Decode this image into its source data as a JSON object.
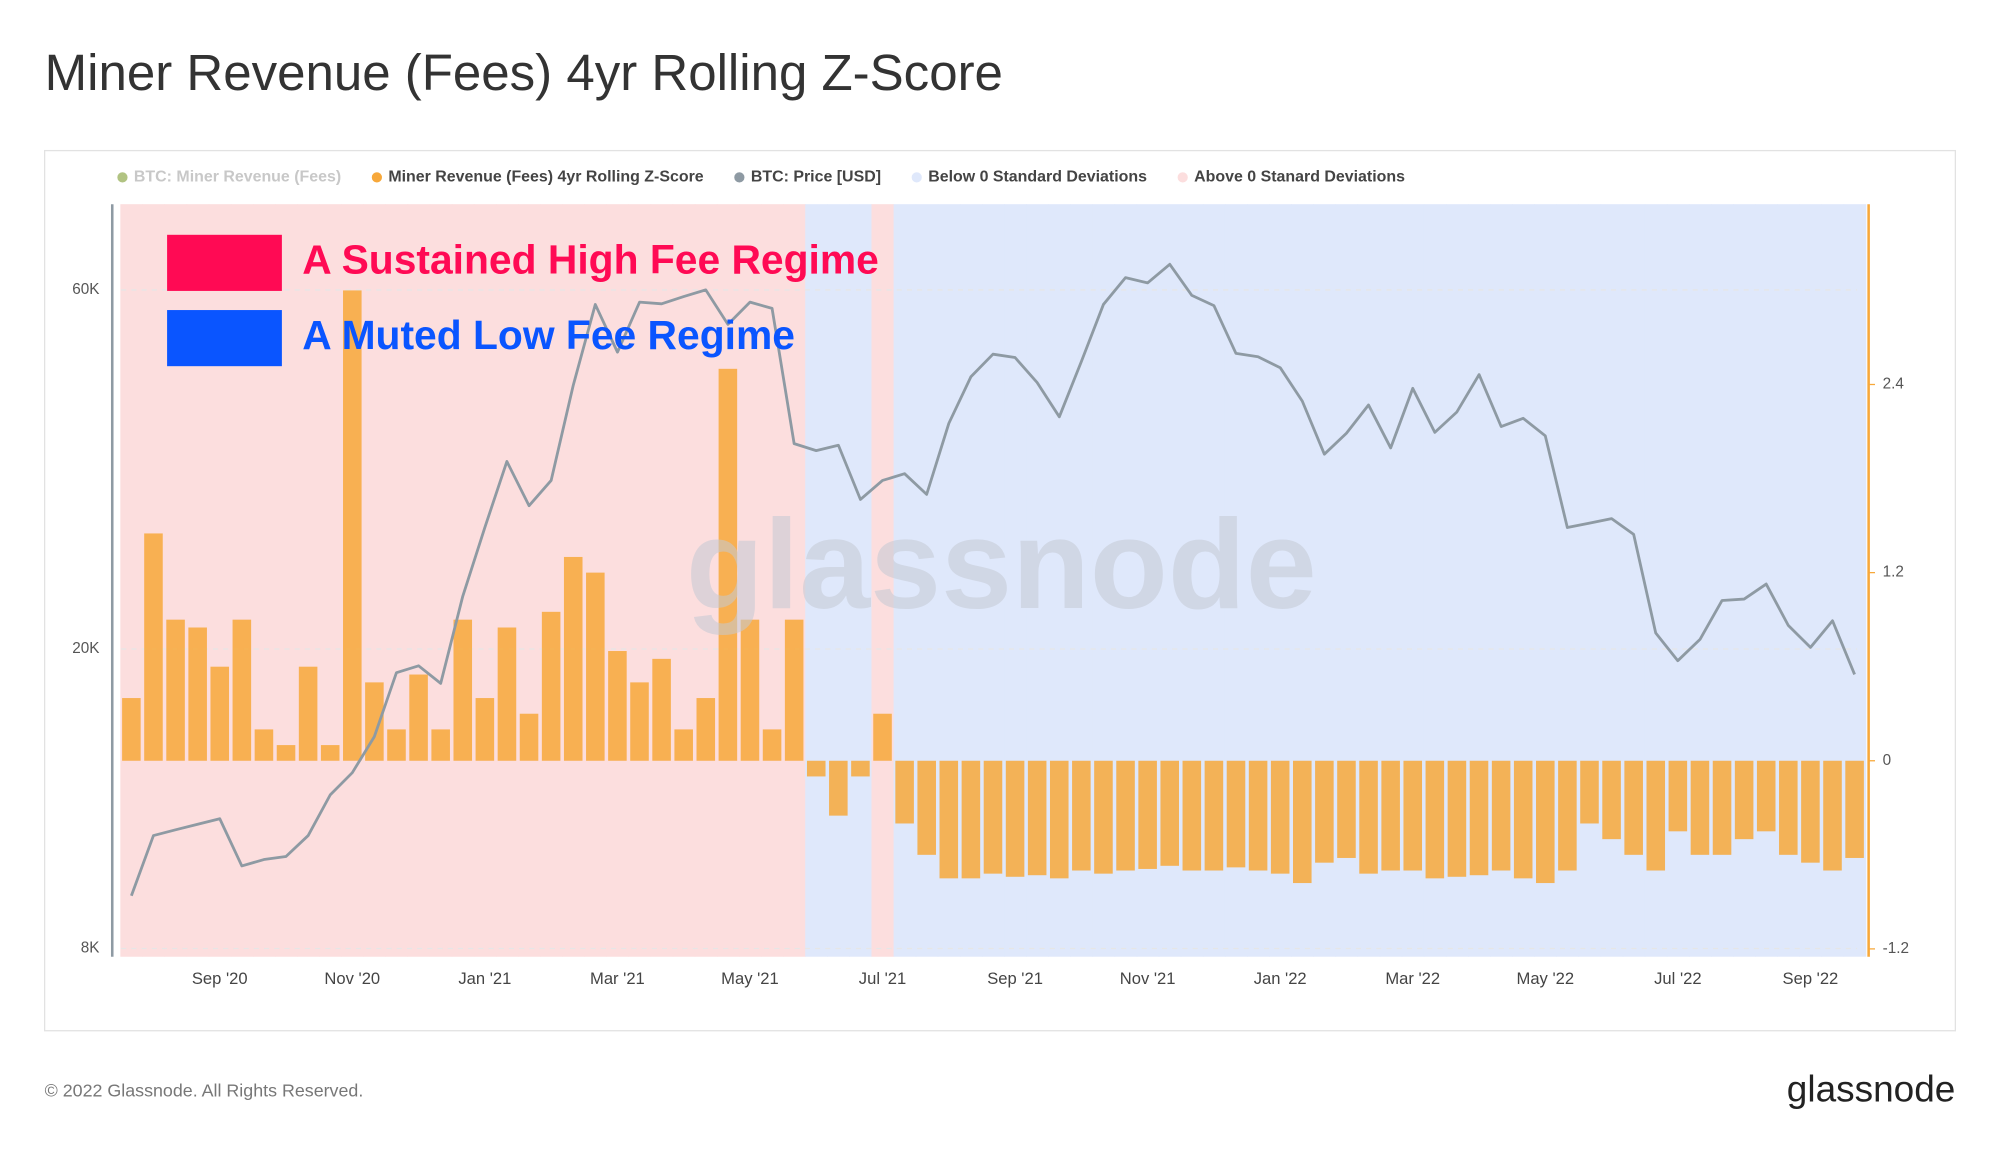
{
  "chart_data": {
    "type": "combo",
    "title": "Miner Revenue (Fees) 4yr Rolling Z-Score",
    "categories": [
      null,
      null,
      null,
      null,
      "Sep '20",
      null,
      null,
      null,
      null,
      null,
      "Nov '20",
      null,
      null,
      null,
      null,
      null,
      "Jan '21",
      null,
      null,
      null,
      null,
      null,
      "Mar '21",
      null,
      null,
      null,
      null,
      null,
      "May '21",
      null,
      null,
      null,
      null,
      null,
      "Jul '21",
      null,
      null,
      null,
      null,
      null,
      "Sep '21",
      null,
      null,
      null,
      null,
      null,
      "Nov '21",
      null,
      null,
      null,
      null,
      null,
      "Jan '22",
      null,
      null,
      null,
      null,
      null,
      "Mar '22",
      null,
      null,
      null,
      null,
      null,
      "May '22",
      null,
      null,
      null,
      null,
      null,
      "Jul '22",
      null,
      null,
      null,
      null,
      null,
      "Sep '22",
      null,
      null
    ],
    "series": [
      {
        "name": "BTC: Miner Revenue (Fees)",
        "color": "#7d9b2f",
        "hidden": true
      },
      {
        "name": "Miner Revenue (Fees) 4yr Rolling Z-Score",
        "color": "#f7a83a",
        "type": "bar",
        "axis": "y2",
        "values": [
          0.4,
          1.45,
          0.9,
          0.85,
          0.6,
          0.9,
          0.2,
          0.1,
          0.6,
          0.1,
          3.0,
          0.5,
          0.2,
          0.55,
          0.2,
          0.9,
          0.4,
          0.85,
          0.3,
          0.95,
          1.3,
          1.2,
          0.7,
          0.5,
          0.65,
          0.2,
          0.4,
          2.5,
          0.9,
          0.2,
          0.9,
          -0.1,
          -0.35,
          -0.1,
          0.3,
          -0.4,
          -0.6,
          -0.75,
          -0.75,
          -0.72,
          -0.74,
          -0.73,
          -0.75,
          -0.7,
          -0.72,
          -0.7,
          -0.69,
          -0.67,
          -0.7,
          -0.7,
          -0.68,
          -0.7,
          -0.72,
          -0.78,
          -0.65,
          -0.62,
          -0.72,
          -0.7,
          -0.7,
          -0.75,
          -0.74,
          -0.73,
          -0.7,
          -0.75,
          -0.78,
          -0.7,
          -0.4,
          -0.5,
          -0.6,
          -0.7,
          -0.45,
          -0.6,
          -0.6,
          -0.5,
          -0.45,
          -0.6,
          -0.65,
          -0.7,
          -0.62
        ]
      },
      {
        "name": "BTC: Price [USD]",
        "color": "#8e9aa3",
        "type": "line",
        "values": [
          9400,
          11300,
          11500,
          11700,
          11900,
          10300,
          10500,
          10600,
          11300,
          12800,
          13700,
          15300,
          18600,
          19000,
          18000,
          23500,
          29000,
          35500,
          31000,
          33500,
          44800,
          57400,
          49600,
          57800,
          57500,
          58800,
          60000,
          54000,
          57800,
          56700,
          37500,
          36700,
          37300,
          31600,
          33500,
          34200,
          32100,
          39900,
          46000,
          49300,
          48800,
          45200,
          40700,
          48200,
          57400,
          62300,
          61300,
          64900,
          59000,
          57200,
          49400,
          48900,
          47300,
          42700,
          36300,
          38700,
          42200,
          37000,
          44400,
          38800,
          41300,
          46300,
          39500,
          40500,
          38400,
          29000,
          29400,
          29800,
          28400,
          21000,
          19300,
          20600,
          23200,
          23300,
          24400,
          21500,
          20100,
          21800,
          18500
        ]
      },
      {
        "name": "Below 0 Standard Deviations",
        "color": "#dfe8fb"
      },
      {
        "name": "Above 0 Stanard Deviations",
        "color": "#fcdede"
      }
    ],
    "y_log": true,
    "ylim": [
      7800,
      78000
    ],
    "yticks": [
      {
        "value": 8000,
        "label": "8K"
      },
      {
        "value": 20000,
        "label": "20K"
      },
      {
        "value": 60000,
        "label": "60K"
      }
    ],
    "y2lim": [
      -1.25,
      3.55
    ],
    "y2ticks": [
      -1.2,
      0,
      1.2,
      2.4
    ],
    "grid": true,
    "annotations": [
      {
        "text": "A Sustained High Fee Regime",
        "color": "#ff0a54"
      },
      {
        "text": "A Muted Low Fee Regime",
        "color": "#0a55ff"
      }
    ],
    "watermark": "glassnode"
  },
  "footer": {
    "copyright": "© 2022 Glassnode. All Rights Reserved.",
    "logo": "glassnode"
  }
}
